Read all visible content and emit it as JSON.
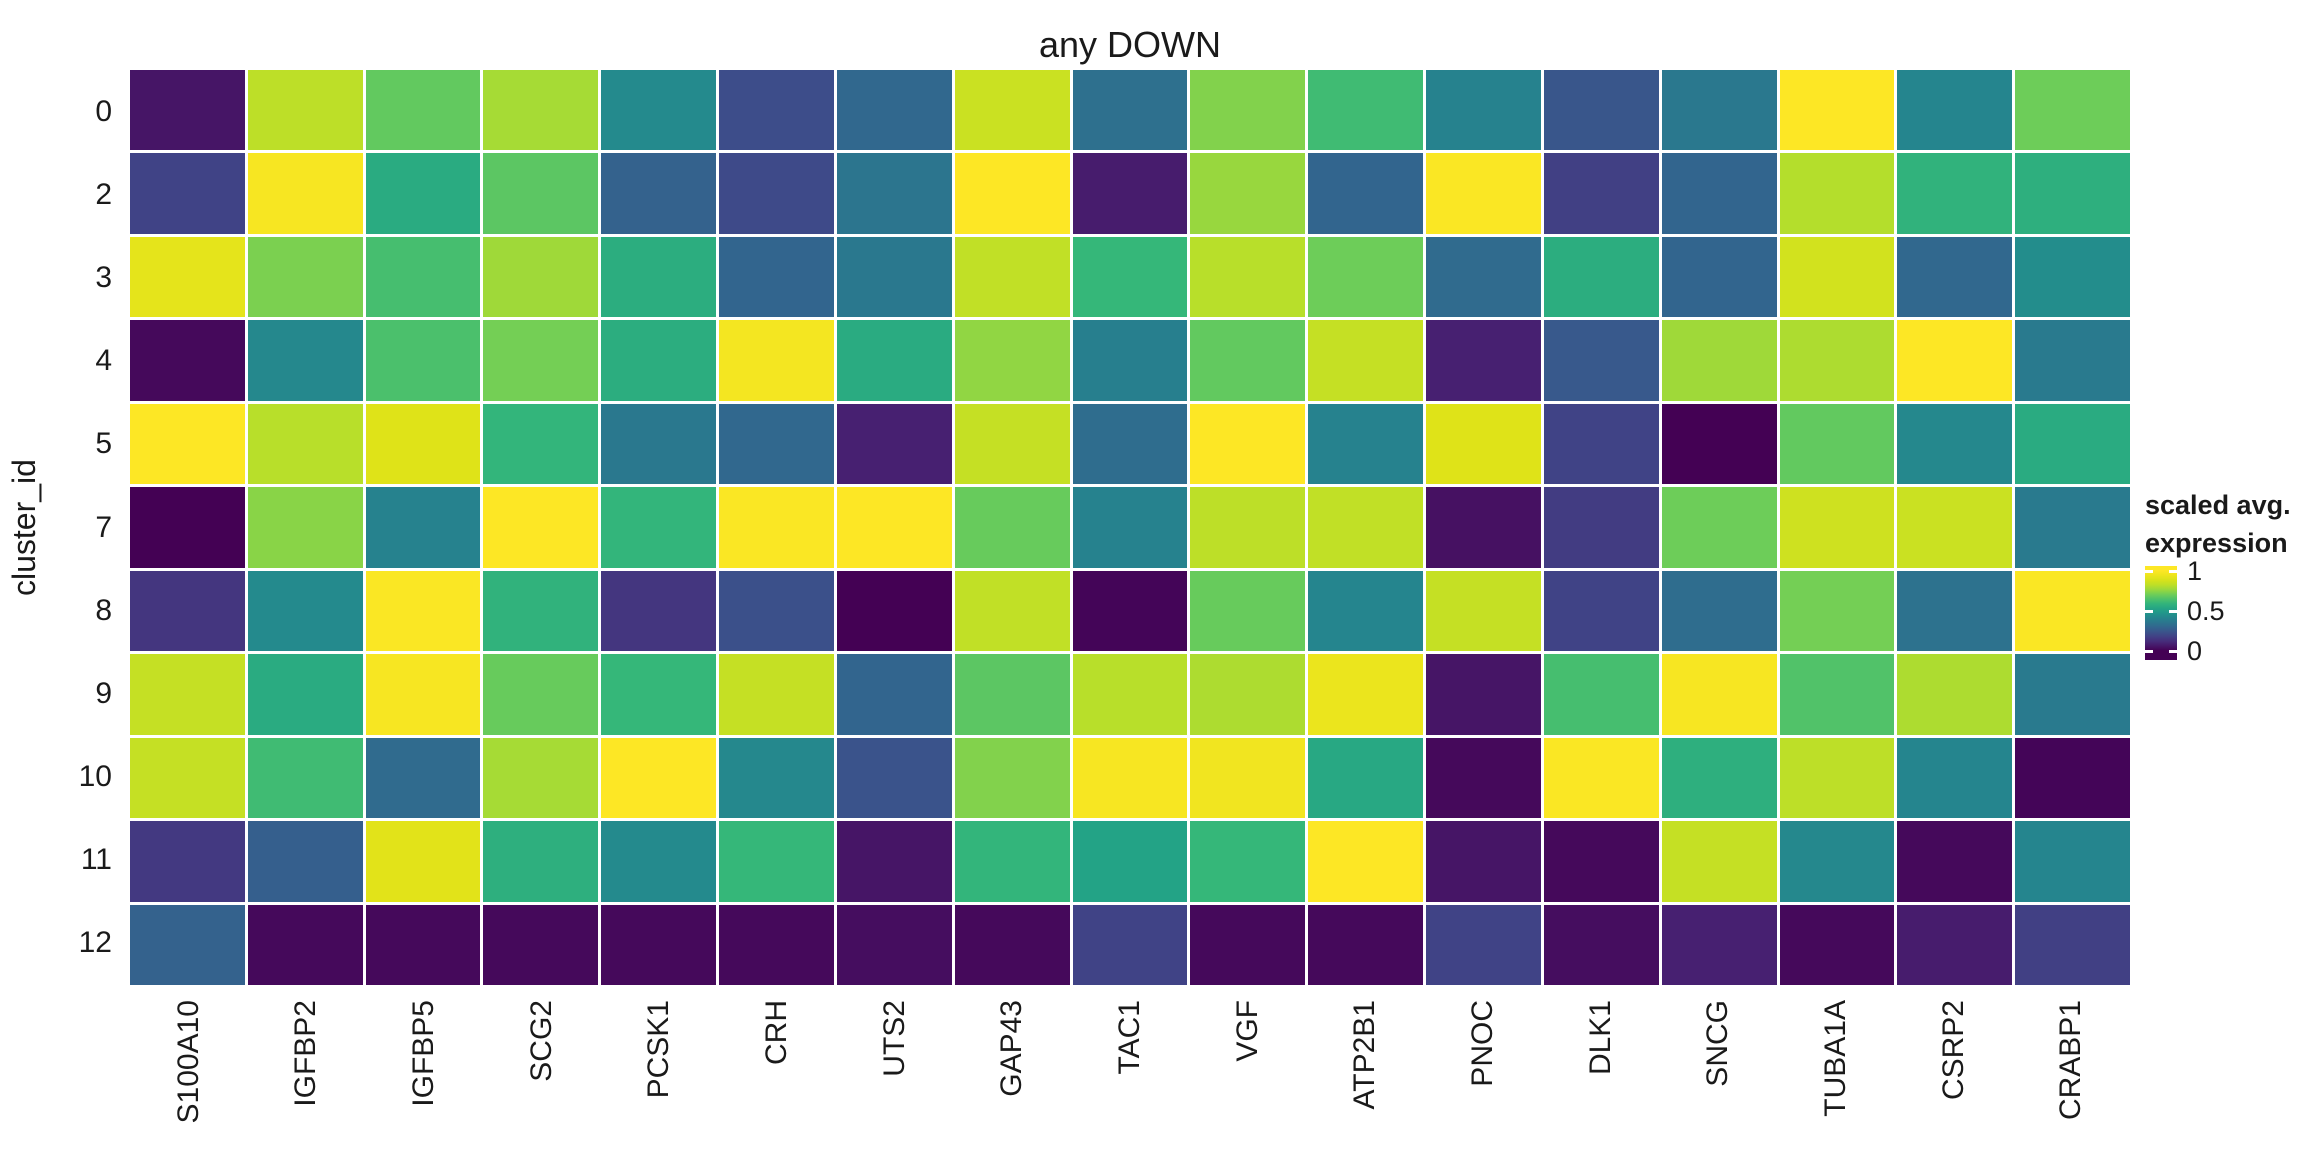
{
  "title": "any DOWN",
  "y_axis_title": "cluster_id",
  "legend": {
    "title_line1": "scaled avg.",
    "title_line2": "expression",
    "ticks": [
      {
        "label": "1",
        "pos_pct": 5
      },
      {
        "label": "0.5",
        "pos_pct": 47.5
      },
      {
        "label": "0",
        "pos_pct": 90
      }
    ]
  },
  "chart_data": {
    "type": "heatmap",
    "title": "any DOWN",
    "xlabel": "",
    "ylabel": "cluster_id",
    "legend_title": "scaled avg. expression",
    "colormap": "viridis",
    "value_range": [
      0,
      1
    ],
    "grid_gap_color": "#ffffff",
    "viridis_stops": [
      "#440154",
      "#482878",
      "#3E4A89",
      "#31688E",
      "#26828E",
      "#1F9E89",
      "#35B779",
      "#6DCD59",
      "#B4DE2C",
      "#DFE318",
      "#FDE725"
    ],
    "columns": [
      "S100A10",
      "IGFBP2",
      "IGFBP5",
      "SCG2",
      "PCSK1",
      "CRH",
      "UTS2",
      "GAP43",
      "TAC1",
      "VGF",
      "ATP2B1",
      "PNOC",
      "DLK1",
      "SNCG",
      "TUBA1A",
      "CSRP2",
      "CRABP1"
    ],
    "rows": [
      "0",
      "2",
      "3",
      "4",
      "5",
      "7",
      "8",
      "9",
      "10",
      "11",
      "12"
    ],
    "values": [
      [
        0.05,
        0.82,
        0.68,
        0.78,
        0.43,
        0.21,
        0.3,
        0.85,
        0.33,
        0.73,
        0.62,
        0.4,
        0.24,
        0.36,
        1.0,
        0.41,
        0.7
      ],
      [
        0.18,
        0.98,
        0.55,
        0.67,
        0.28,
        0.2,
        0.35,
        1.0,
        0.07,
        0.76,
        0.29,
        0.99,
        0.17,
        0.29,
        0.8,
        0.58,
        0.57
      ],
      [
        0.92,
        0.72,
        0.63,
        0.77,
        0.56,
        0.29,
        0.36,
        0.83,
        0.6,
        0.81,
        0.7,
        0.31,
        0.56,
        0.29,
        0.87,
        0.3,
        0.44
      ],
      [
        0.02,
        0.42,
        0.64,
        0.71,
        0.56,
        0.97,
        0.55,
        0.75,
        0.39,
        0.68,
        0.84,
        0.08,
        0.25,
        0.77,
        0.79,
        1.0,
        0.37
      ],
      [
        1.0,
        0.81,
        0.9,
        0.59,
        0.36,
        0.3,
        0.08,
        0.84,
        0.32,
        1.0,
        0.4,
        0.9,
        0.18,
        0.0,
        0.68,
        0.42,
        0.55
      ],
      [
        0.0,
        0.74,
        0.4,
        1.0,
        0.59,
        0.99,
        1.0,
        0.69,
        0.4,
        0.82,
        0.83,
        0.04,
        0.16,
        0.7,
        0.86,
        0.85,
        0.37
      ],
      [
        0.14,
        0.43,
        0.99,
        0.58,
        0.14,
        0.22,
        0.0,
        0.83,
        0.01,
        0.69,
        0.41,
        0.84,
        0.18,
        0.32,
        0.71,
        0.34,
        0.99
      ],
      [
        0.84,
        0.55,
        0.98,
        0.69,
        0.6,
        0.84,
        0.29,
        0.67,
        0.81,
        0.79,
        0.94,
        0.05,
        0.63,
        0.98,
        0.65,
        0.79,
        0.37
      ],
      [
        0.84,
        0.62,
        0.31,
        0.78,
        1.0,
        0.42,
        0.23,
        0.73,
        0.98,
        0.96,
        0.54,
        0.02,
        0.99,
        0.57,
        0.82,
        0.41,
        0.01
      ],
      [
        0.15,
        0.27,
        0.91,
        0.57,
        0.43,
        0.6,
        0.05,
        0.59,
        0.52,
        0.6,
        1.0,
        0.05,
        0.02,
        0.84,
        0.42,
        0.02,
        0.41
      ],
      [
        0.28,
        0.02,
        0.02,
        0.02,
        0.02,
        0.02,
        0.03,
        0.02,
        0.18,
        0.02,
        0.02,
        0.18,
        0.03,
        0.08,
        0.02,
        0.07,
        0.17
      ]
    ],
    "legend_bar": {
      "value_top": 1.06,
      "value_bottom": -0.12
    }
  }
}
